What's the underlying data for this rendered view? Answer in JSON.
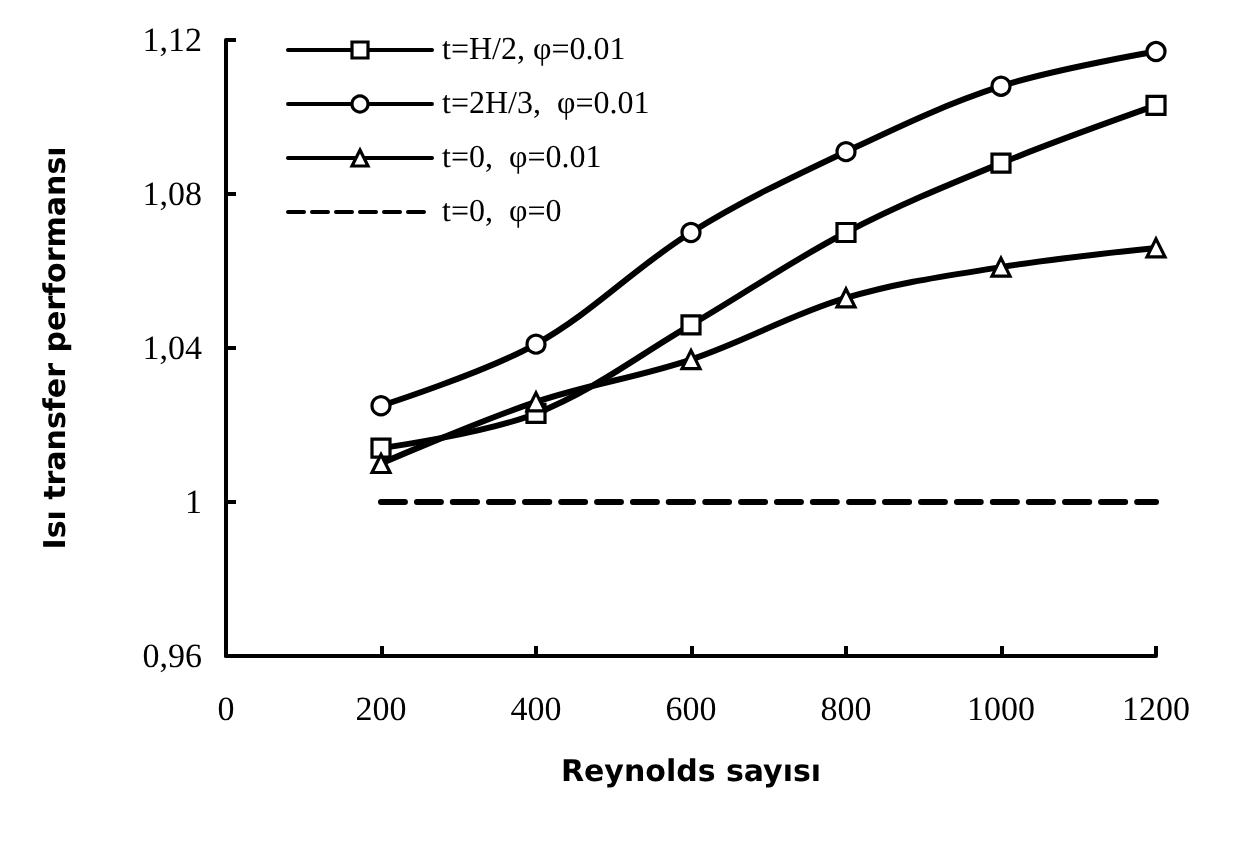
{
  "chart_data": {
    "type": "line",
    "xlabel": "Reynolds sayısı",
    "ylabel": "Isı transfer performansı",
    "x": [
      200,
      400,
      600,
      800,
      1000,
      1200
    ],
    "series": [
      {
        "name": "t=H/2, φ=0.01",
        "color": "#000000",
        "marker": "square",
        "line_style": "solid",
        "values": [
          1.014,
          1.023,
          1.046,
          1.07,
          1.088,
          1.103
        ]
      },
      {
        "name": "t=2H/3,  φ=0.01",
        "color": "#000000",
        "marker": "circle",
        "line_style": "solid",
        "values": [
          1.025,
          1.041,
          1.07,
          1.091,
          1.108,
          1.117
        ]
      },
      {
        "name": "t=0,  φ=0.01",
        "color": "#000000",
        "marker": "triangle",
        "line_style": "solid",
        "values": [
          1.01,
          1.026,
          1.037,
          1.053,
          1.061,
          1.066
        ]
      },
      {
        "name": "t=0,  φ=0",
        "color": "#000000",
        "marker": "none",
        "line_style": "dashed",
        "values": [
          1,
          1,
          1,
          1,
          1,
          1
        ]
      }
    ],
    "xlim": [
      0,
      1200
    ],
    "xticks": [
      0,
      200,
      400,
      600,
      800,
      1000,
      1200
    ],
    "ylim": [
      0.96,
      1.12
    ],
    "yticks": [
      {
        "value": 0.96,
        "label": "0,96"
      },
      1,
      {
        "value": 1.04,
        "label": "1,04"
      },
      {
        "value": 1.08,
        "label": "1,08"
      },
      {
        "value": 1.12,
        "label": "1,12"
      }
    ],
    "grid": false,
    "legend": "top left"
  }
}
